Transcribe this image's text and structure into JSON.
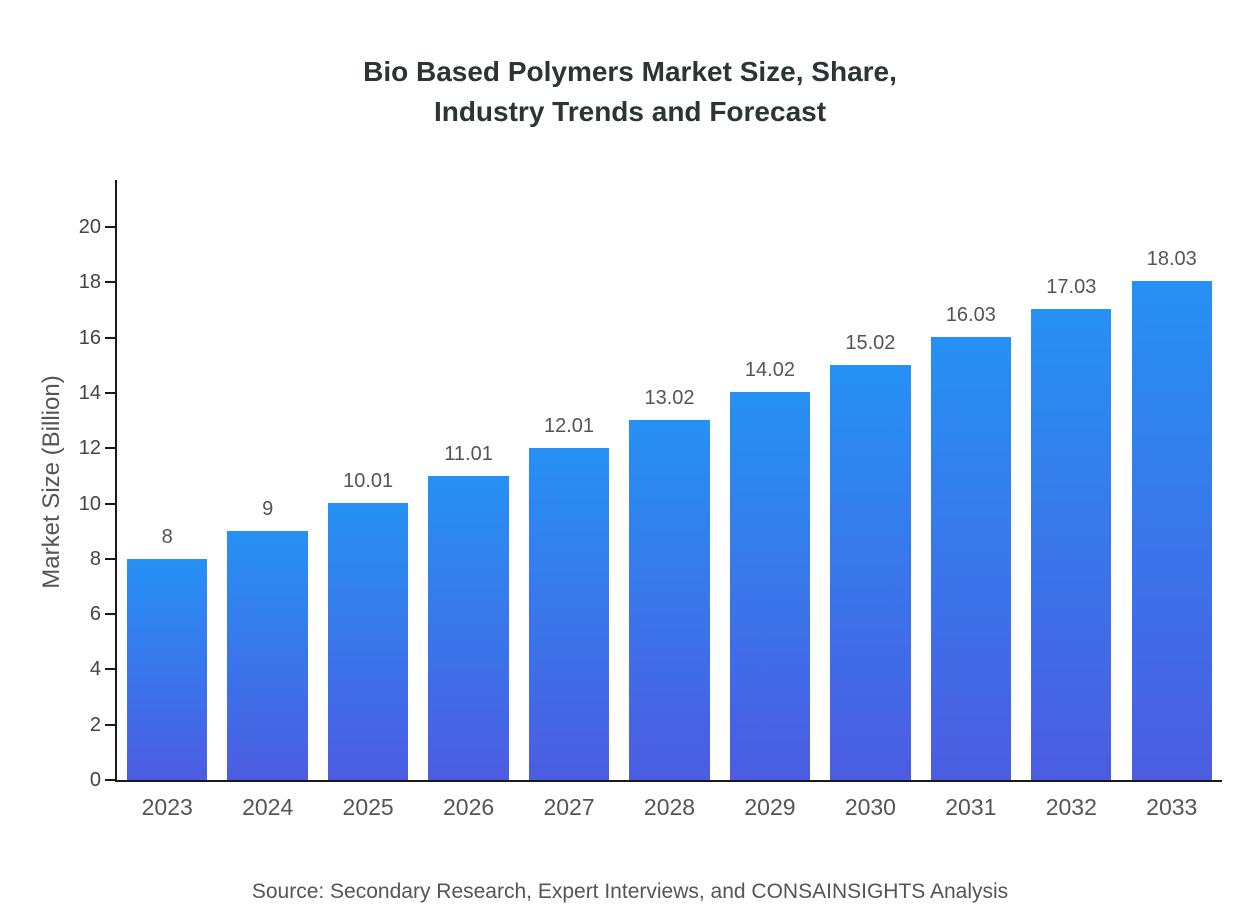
{
  "title": {
    "line1": "Bio Based Polymers Market Size, Share,",
    "line2": "Industry Trends and Forecast"
  },
  "source": "Source: Secondary Research, Expert Interviews, and CONSAINSIGHTS Analysis",
  "colors": {
    "bar_top": "#2691f4",
    "bar_bottom": "#4c5ce1",
    "axis": "#1a1a1a",
    "label_text": "#555555",
    "title_text": "#2d3436"
  },
  "chart_data": {
    "type": "bar",
    "title": "Bio Based Polymers Market Size, Share, Industry Trends and Forecast",
    "categories": [
      "2023",
      "2024",
      "2025",
      "2026",
      "2027",
      "2028",
      "2029",
      "2030",
      "2031",
      "2032",
      "2033"
    ],
    "values": [
      8,
      9,
      10.01,
      11.01,
      12.01,
      13.02,
      14.02,
      15.02,
      16.03,
      17.03,
      18.03
    ],
    "value_labels": [
      "8",
      "9",
      "10.01",
      "11.01",
      "12.01",
      "13.02",
      "14.02",
      "15.02",
      "16.03",
      "17.03",
      "18.03"
    ],
    "xlabel": "",
    "ylabel": "Market Size (Billion)",
    "ylim": [
      0,
      20
    ],
    "yticks": [
      0,
      2,
      4,
      6,
      8,
      10,
      12,
      14,
      16,
      18,
      20
    ],
    "grid": false,
    "legend": false,
    "bar_color_gradient": [
      "#2691f4",
      "#4c5ce1"
    ]
  }
}
